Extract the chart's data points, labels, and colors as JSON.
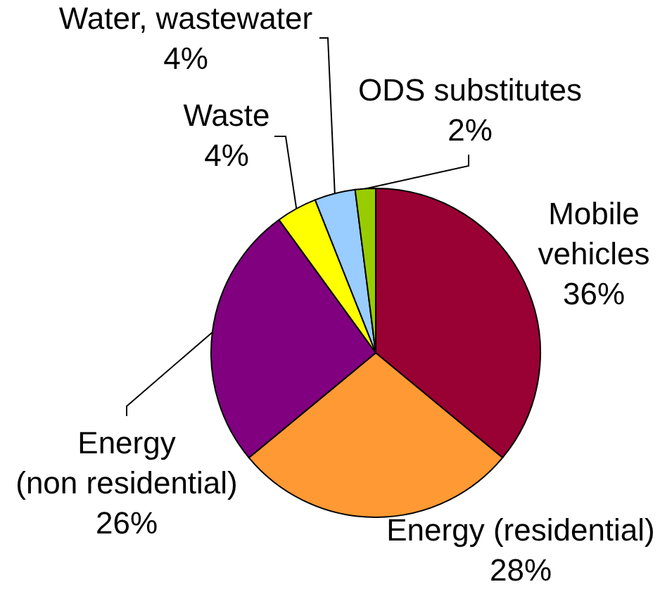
{
  "chart_data": {
    "type": "pie",
    "categories": [
      "Mobile vehicles",
      "Energy (residential)",
      "Energy (non residential)",
      "Waste",
      "Water, wastewater",
      "ODS substitutes"
    ],
    "values": [
      36,
      28,
      26,
      4,
      4,
      2
    ],
    "colors": [
      "#990033",
      "#ff9933",
      "#800080",
      "#ffff00",
      "#99ccff",
      "#99cc00"
    ],
    "value_labels": [
      "36%",
      "28%",
      "26%",
      "4%",
      "4%",
      "2%"
    ]
  }
}
